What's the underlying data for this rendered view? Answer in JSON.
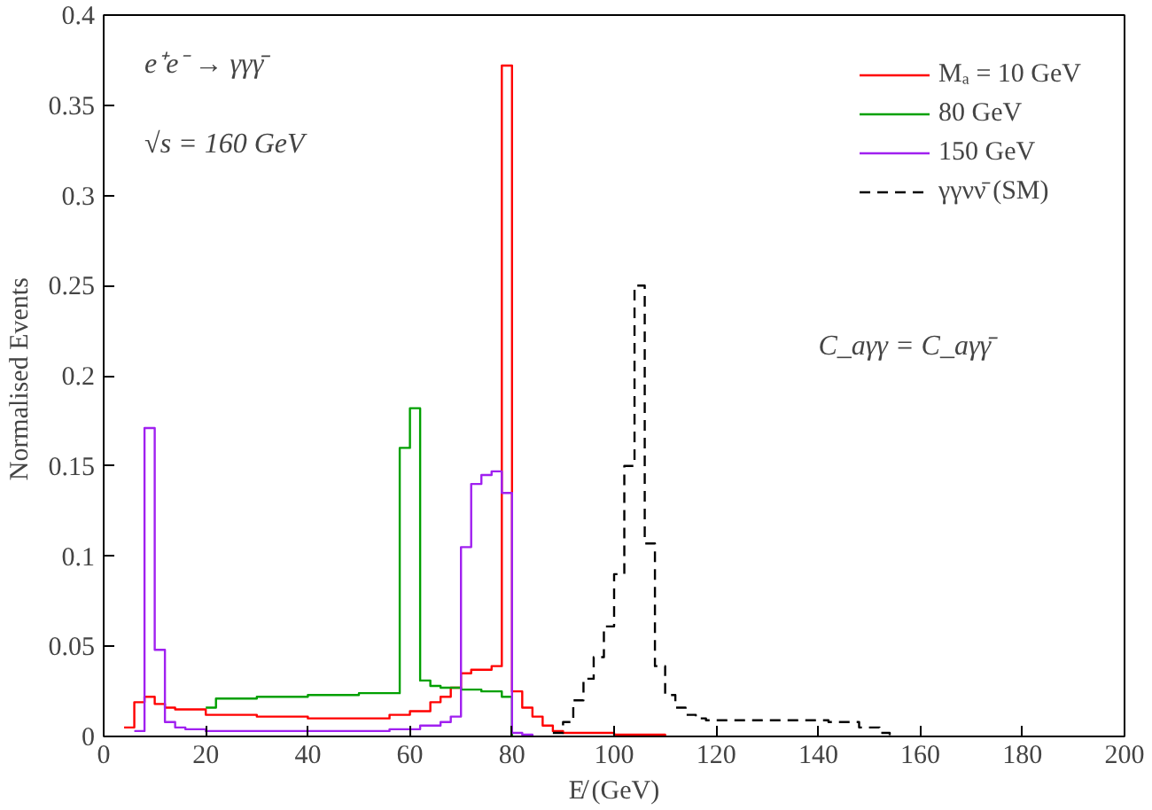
{
  "chart_data": {
    "type": "step",
    "xlabel": "E̸ (GeV)",
    "ylabel": "Normalised  Events",
    "xlim": [
      0,
      200
    ],
    "ylim": [
      0,
      0.4
    ],
    "xticks": [
      0,
      20,
      40,
      60,
      80,
      100,
      120,
      140,
      160,
      180,
      200
    ],
    "yticks": [
      0,
      0.05,
      0.1,
      0.15,
      0.2,
      0.25,
      0.3,
      0.35,
      0.4
    ],
    "grid": false,
    "legend": "top right",
    "annotations": [
      "e⁺e⁻ → γγγ̄",
      "√s = 160  GeV",
      "C_aγγ = C_aγγ̄"
    ],
    "series": [
      {
        "name": "Mₐ = 10 GeV",
        "color": "#ff0000",
        "line_style": "solid",
        "x": [
          4,
          6,
          8,
          10,
          12,
          14,
          20,
          30,
          40,
          50,
          56,
          60,
          64,
          66,
          68,
          70,
          72,
          76,
          78,
          80,
          82,
          84,
          86,
          88,
          90,
          100,
          110
        ],
        "values": [
          0.005,
          0.019,
          0.022,
          0.018,
          0.016,
          0.015,
          0.012,
          0.011,
          0.01,
          0.01,
          0.012,
          0.014,
          0.019,
          0.022,
          0.027,
          0.035,
          0.037,
          0.039,
          0.372,
          0.025,
          0.016,
          0.011,
          0.006,
          0.003,
          0.002,
          0.001,
          0
        ]
      },
      {
        "name": "80 GeV",
        "color": "#00a000",
        "line_style": "solid",
        "x": [
          20,
          22,
          24,
          30,
          40,
          50,
          58,
          60,
          62,
          64,
          66,
          70,
          74,
          78,
          80
        ],
        "values": [
          0.016,
          0.021,
          0.021,
          0.022,
          0.023,
          0.024,
          0.16,
          0.182,
          0.031,
          0.028,
          0.027,
          0.026,
          0.025,
          0.022,
          0
        ]
      },
      {
        "name": "150 GeV",
        "color": "#a020f0",
        "line_style": "solid",
        "x": [
          6,
          8,
          10,
          12,
          14,
          16,
          20,
          56,
          62,
          66,
          68,
          70,
          72,
          74,
          76,
          78,
          80,
          82,
          84
        ],
        "values": [
          0.003,
          0.171,
          0.048,
          0.008,
          0.005,
          0.004,
          0.003,
          0.004,
          0.006,
          0.008,
          0.011,
          0.105,
          0.14,
          0.145,
          0.147,
          0.135,
          0.002,
          0.001,
          0
        ]
      },
      {
        "name": "γγνν̄ (SM)",
        "color": "#000000",
        "line_style": "dashed",
        "x": [
          88,
          90,
          92,
          94,
          96,
          98,
          100,
          102,
          104,
          106,
          108,
          110,
          112,
          114,
          116,
          118,
          142,
          148,
          152,
          154
        ],
        "values": [
          0.002,
          0.008,
          0.02,
          0.032,
          0.044,
          0.061,
          0.09,
          0.15,
          0.25,
          0.107,
          0.039,
          0.023,
          0.016,
          0.012,
          0.01,
          0.009,
          0.008,
          0.005,
          0.002,
          0
        ]
      }
    ]
  }
}
